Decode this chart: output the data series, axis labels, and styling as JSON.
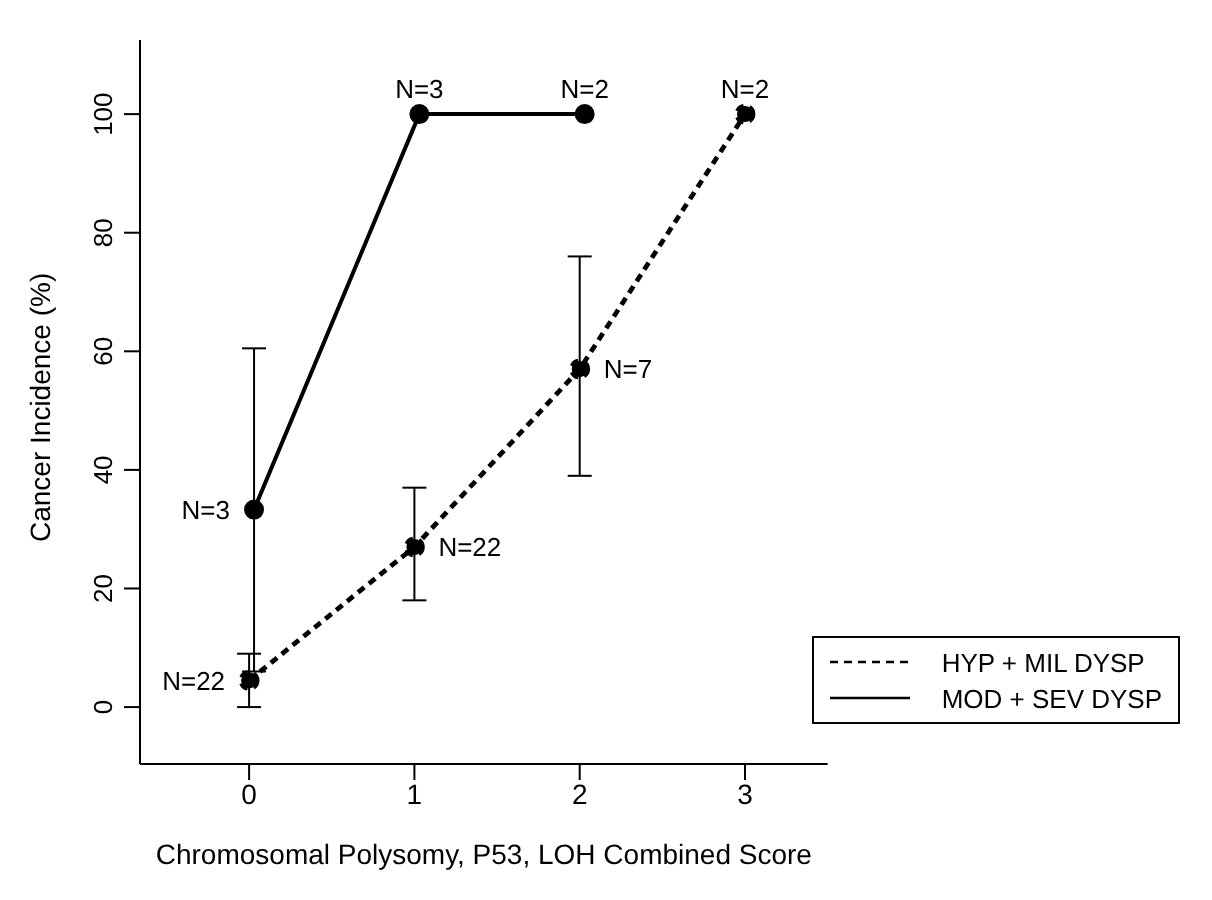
{
  "chart_data": {
    "type": "line",
    "xlabel": "Chromosomal Polysomy, P53, LOH Combined Score",
    "ylabel": "Cancer Incidence (%)",
    "xlim": [
      -0.66,
      3.5
    ],
    "xticks": [
      0,
      1,
      2,
      3
    ],
    "ylim": [
      -9.6,
      112.5
    ],
    "yticks": [
      0,
      20,
      40,
      60,
      80,
      100
    ],
    "series": [
      {
        "name": "HYP + MIL DYSP",
        "color": "#000000",
        "line_style": "dashed",
        "x": [
          0,
          1,
          2,
          3
        ],
        "values": [
          4.5,
          27,
          57,
          100
        ],
        "errors": [
          [
            0,
            9
          ],
          [
            18,
            37
          ],
          [
            39,
            76
          ],
          null
        ]
      },
      {
        "name": "MOD + SEV DYSP",
        "color": "#000000",
        "line_style": "solid",
        "x": [
          0.03,
          1.03,
          2.03
        ],
        "values": [
          33.3,
          100,
          100
        ],
        "errors": [
          [
            6,
            60.5
          ],
          null,
          null
        ]
      }
    ],
    "annotations": [
      {
        "text": "N=22",
        "x": 0,
        "y": 4.5
      },
      {
        "text": "N=22",
        "x": 1,
        "y": 27
      },
      {
        "text": "N=7",
        "x": 2,
        "y": 57
      },
      {
        "text": "N=2",
        "x": 3,
        "y": 100
      },
      {
        "text": "N=3",
        "x": 0.03,
        "y": 33.3
      },
      {
        "text": "N=3",
        "x": 1.03,
        "y": 100
      },
      {
        "text": "N=2",
        "x": 2.03,
        "y": 100
      }
    ],
    "marker": "circle",
    "grid": false,
    "legend": "bottom right"
  }
}
